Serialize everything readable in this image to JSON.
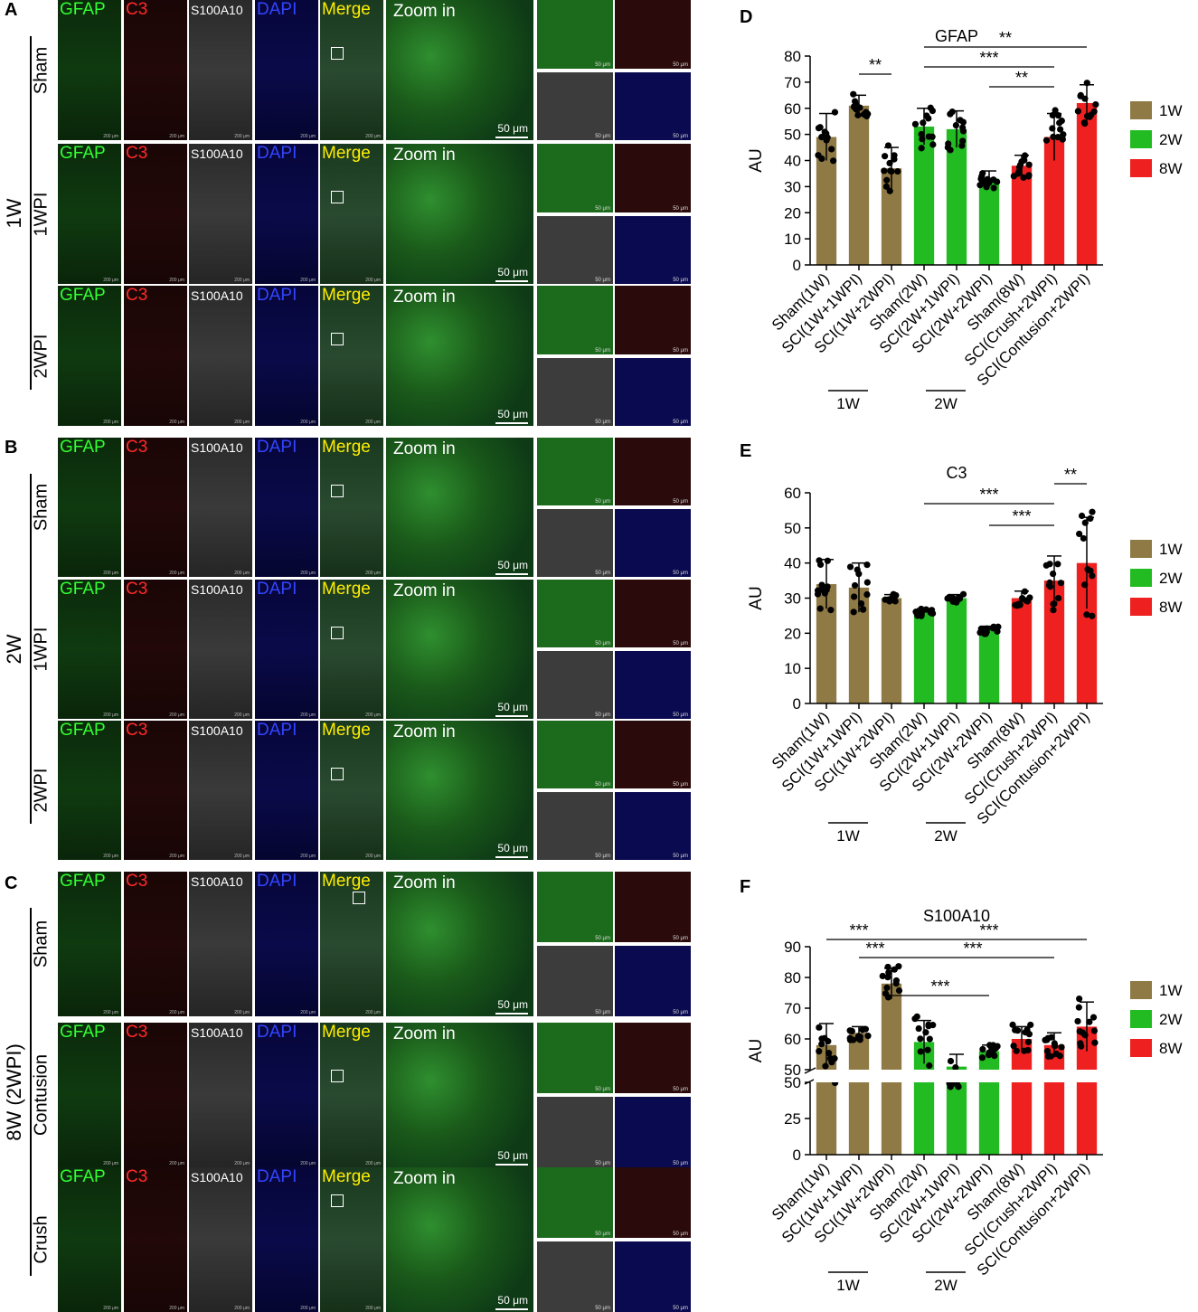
{
  "panel_letters": [
    "A",
    "B",
    "C",
    "D",
    "E",
    "F"
  ],
  "channels": {
    "gfap": "GFAP",
    "c3": "C3",
    "s100": "S100A10",
    "dapi": "DAPI",
    "merge": "Merge",
    "zoom": "Zoom in"
  },
  "scale": {
    "wide": "200 μm",
    "zoom": "50 μm",
    "quad": "50 μm"
  },
  "groups": {
    "A": {
      "label": "1W",
      "rows": [
        "Sham",
        "1WPI",
        "2WPI"
      ]
    },
    "B": {
      "label": "2W",
      "rows": [
        "Sham",
        "1WPI",
        "2WPI"
      ]
    },
    "C": {
      "label": "8W (2WPI)",
      "rows": [
        "Sham",
        "Contusion",
        "Crush"
      ]
    }
  },
  "colors": {
    "c1W": "#8f7a45",
    "c2W": "#22bb22",
    "c8W": "#ee2020"
  },
  "chart_data": [
    {
      "type": "bar",
      "id": "D",
      "title": "GFAP",
      "ylabel": "AU",
      "ylim": [
        0,
        80
      ],
      "yticks": [
        0,
        10,
        20,
        30,
        40,
        50,
        60,
        70,
        80
      ],
      "categories": [
        "Sham(1W)",
        "SCI(1W+1WPI)",
        "SCI(1W+2WPI)",
        "Sham(2W)",
        "SCI(2W+1WPI)",
        "SCI(2W+2WPI)",
        "Sham(8W)",
        "SCI(Crush+2WPI)",
        "SCI(Contusion+2WPI)"
      ],
      "groups": [
        "1W",
        "1W",
        "1W",
        "2W",
        "2W",
        "2W",
        "8W",
        "8W",
        "8W"
      ],
      "values": [
        49,
        61,
        37,
        53,
        52,
        33,
        38,
        49,
        62
      ],
      "err": [
        9,
        4,
        8,
        7,
        7,
        3,
        4,
        9,
        7
      ],
      "group_labels": [
        "1W",
        "2W"
      ],
      "legend": [
        "1W",
        "2W",
        "8W"
      ],
      "sig": [
        {
          "from": 1,
          "to": 2,
          "label": "**",
          "level": 1
        },
        {
          "from": 3,
          "to": 8,
          "label": "**",
          "level": 4
        },
        {
          "from": 3,
          "to": 7,
          "label": "***",
          "level": 3
        },
        {
          "from": 5,
          "to": 7,
          "label": "**",
          "level": 2
        }
      ]
    },
    {
      "type": "bar",
      "id": "E",
      "title": "C3",
      "ylabel": "AU",
      "ylim": [
        0,
        60
      ],
      "yticks": [
        0,
        10,
        20,
        30,
        40,
        50,
        60
      ],
      "categories": [
        "Sham(1W)",
        "SCI(1W+1WPI)",
        "SCI(1W+2WPI)",
        "Sham(2W)",
        "SCI(2W+1WPI)",
        "SCI(2W+2WPI)",
        "Sham(8W)",
        "SCI(Crush+2WPI)",
        "SCI(Contusion+2WPI)"
      ],
      "groups": [
        "1W",
        "1W",
        "1W",
        "2W",
        "2W",
        "2W",
        "8W",
        "8W",
        "8W"
      ],
      "values": [
        34,
        33,
        30,
        26,
        30,
        21,
        30,
        35,
        40
      ],
      "err": [
        7,
        7,
        1,
        1,
        1,
        1,
        2,
        7,
        13
      ],
      "group_labels": [
        "1W",
        "2W"
      ],
      "legend": [
        "1W",
        "2W",
        "8W"
      ],
      "sig": [
        {
          "from": 3,
          "to": 7,
          "label": "***",
          "level": 2
        },
        {
          "from": 7,
          "to": 8,
          "label": "**",
          "level": 3
        },
        {
          "from": 5,
          "to": 7,
          "label": "***",
          "level": 1
        }
      ]
    },
    {
      "type": "bar",
      "id": "F",
      "title": "S100A10",
      "ylabel": "AU",
      "ylim": [
        0,
        90
      ],
      "yticks_upper": [
        50,
        60,
        70,
        80,
        90
      ],
      "yticks_lower": [
        0,
        25,
        50
      ],
      "categories": [
        "Sham(1W)",
        "SCI(1W+1WPI)",
        "SCI(1W+2WPI)",
        "Sham(2W)",
        "SCI(2W+1WPI)",
        "SCI(2W+2WPI)",
        "Sham(8W)",
        "SCI(Crush+2WPI)",
        "SCI(Contusion+2WPI)"
      ],
      "groups": [
        "1W",
        "1W",
        "1W",
        "2W",
        "2W",
        "2W",
        "8W",
        "8W",
        "8W"
      ],
      "values": [
        58,
        62,
        78,
        59,
        51,
        56,
        60,
        58,
        64
      ],
      "err": [
        7,
        2,
        5,
        7,
        4,
        2,
        4,
        4,
        8
      ],
      "group_labels": [
        "1W",
        "2W"
      ],
      "legend": [
        "1W",
        "2W",
        "8W"
      ],
      "sig": [
        {
          "from": 0,
          "to": 2,
          "label": "***",
          "level": 3
        },
        {
          "from": 1,
          "to": 2,
          "label": "***",
          "level": 2
        },
        {
          "from": 2,
          "to": 8,
          "label": "***",
          "level": 3
        },
        {
          "from": 2,
          "to": 7,
          "label": "***",
          "level": 2
        },
        {
          "from": 2,
          "to": 5,
          "label": "***",
          "level": 1
        }
      ]
    }
  ]
}
